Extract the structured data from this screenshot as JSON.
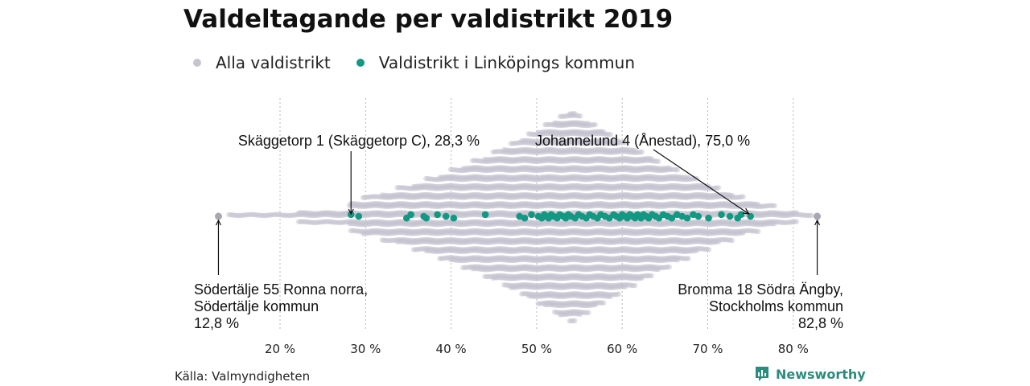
{
  "header": {
    "title": "Valdeltagande per valdistrikt 2019"
  },
  "legend": {
    "all_label": "Alla valdistrikt",
    "all_color": "#c6c4d0",
    "linkoping_label": "Valdistrikt i Linköpings kommun",
    "linkoping_color": "#139883"
  },
  "footer": {
    "source": "Källa: Valmyndigheten",
    "brand": "Newsworthy"
  },
  "chart_data": {
    "type": "scatter",
    "subtype": "beeswarm",
    "title": "Valdeltagande per valdistrikt 2019",
    "xlabel": "",
    "ylabel": "",
    "xlim": [
      12,
      84
    ],
    "x_ticks": [
      20,
      30,
      40,
      50,
      60,
      70,
      80
    ],
    "x_tick_labels": [
      "20 %",
      "30 %",
      "40 %",
      "50 %",
      "60 %",
      "70 %",
      "80 %"
    ],
    "grid": "vertical dotted",
    "legend_position": "top-left",
    "series": [
      {
        "name": "Alla valdistrikt",
        "color": "#c6c4d0",
        "distribution": "dense swarm of all districts, roughly 13 %–83 %, peaking near 54 %",
        "range": [
          12.8,
          82.8
        ],
        "peak": 54
      },
      {
        "name": "Valdistrikt i Linköpings kommun",
        "color": "#139883",
        "values": [
          28.3,
          29.2,
          34.8,
          35.3,
          36.8,
          37.1,
          38.4,
          39.4,
          40.3,
          44.0,
          48.0,
          48.6,
          49.4,
          50.2,
          50.6,
          50.9,
          51.1,
          51.4,
          51.7,
          52.0,
          52.4,
          52.7,
          53.1,
          53.4,
          53.7,
          54.0,
          54.5,
          54.9,
          55.3,
          55.8,
          56.2,
          56.6,
          57.1,
          57.5,
          58.0,
          58.5,
          59.0,
          59.3,
          59.7,
          60.0,
          60.3,
          60.6,
          60.9,
          61.2,
          61.5,
          61.8,
          62.0,
          62.2,
          62.5,
          62.8,
          63.1,
          63.5,
          63.9,
          64.3,
          64.8,
          65.3,
          65.8,
          66.4,
          67.0,
          67.6,
          68.3,
          68.9,
          70.1,
          71.6,
          72.6,
          73.5,
          73.9,
          75.0
        ]
      }
    ],
    "annotations": [
      {
        "lines": [
          "Skäggetorp 1 (Skäggetorp C), 28,3 %"
        ],
        "x": 28.3
      },
      {
        "lines": [
          "Johannelund 4 (Ånestad), 75,0 %"
        ],
        "x": 75.0
      },
      {
        "lines": [
          "Södertälje 55 Ronna norra,",
          "Södertälje kommun",
          "12,8 %"
        ],
        "x": 12.8
      },
      {
        "lines": [
          "Bromma 18 Södra Ängby,",
          "Stockholms kommun",
          "82,8 %"
        ],
        "x": 82.8
      }
    ]
  }
}
